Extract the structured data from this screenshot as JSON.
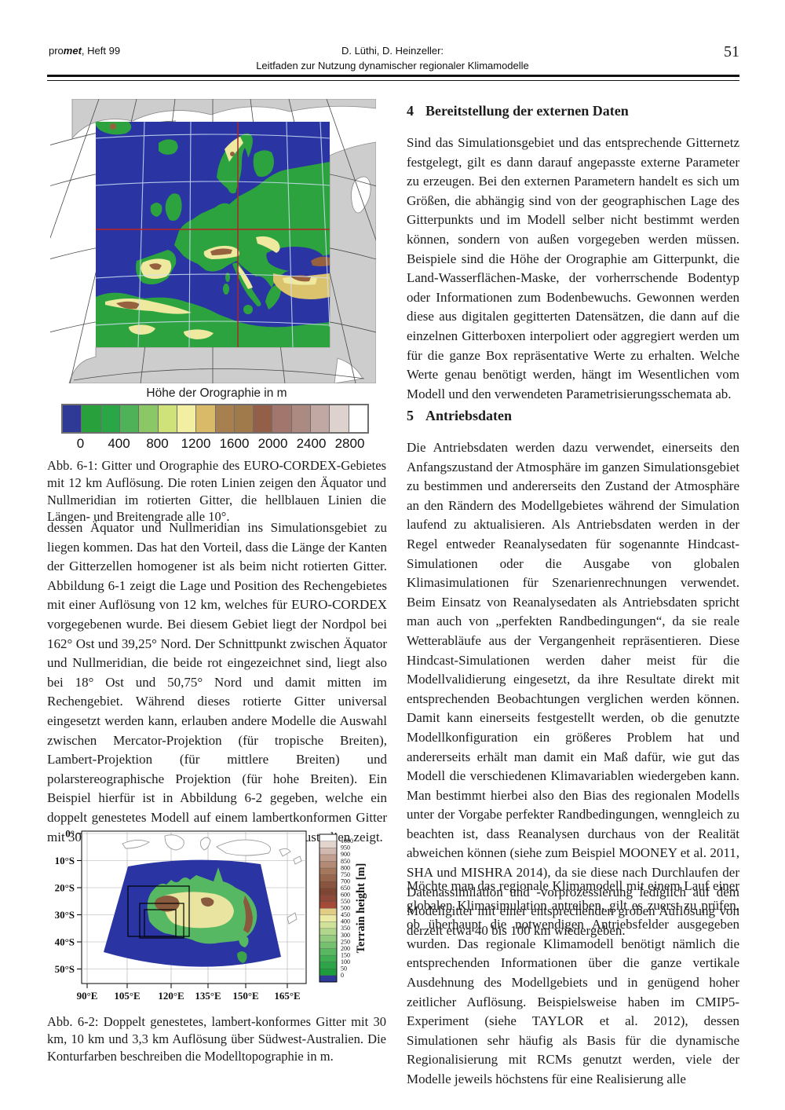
{
  "header": {
    "journal_prefix": "pro",
    "journal_bold_italic": "met",
    "journal_suffix": ", Heft 99",
    "authors_line": "D. Lüthi, D. Heinzeller:",
    "title_line": "Leitfaden zur Nutzung dynamischer regionaler Klimamodelle",
    "page_number": "51"
  },
  "left_column": {
    "figure1": {
      "colorbar_title": "Höhe der Orographie in m",
      "colorbar_colors": [
        "#2e3a96",
        "#28a03c",
        "#2aa647",
        "#4fb158",
        "#8cc765",
        "#cfe179",
        "#f2efa2",
        "#d9ba69",
        "#a8804f",
        "#a07a4b",
        "#935f49",
        "#a3766d",
        "#ab8a82",
        "#c2a8a2",
        "#ddd2ce",
        "#ffffff"
      ],
      "colorbar_ticks": [
        "0",
        "400",
        "800",
        "1200",
        "1600",
        "2000",
        "2400",
        "2800"
      ],
      "caption": "Abb. 6-1: Gitter und Orographie des EURO-CORDEX-Gebietes mit 12 km Auflösung. Die roten Linien zeigen den Äquator und Nullmeridian im rotierten Gitter, die hellblauen Linien die Längen- und Breitengrade alle 10°."
    },
    "paragraph": "dessen Äquator und Nullmeridian ins Simulationsgebiet zu liegen kommen. Das hat den Vorteil, dass die Länge der Kanten der Gitterzellen homogener ist als beim nicht rotierten Gitter. Abbildung  6-1 zeigt die Lage und Position des Rechengebietes mit einer Auflösung von 12 km, welches für EURO-CORDEX vorgegebenen wurde. Bei diesem Gebiet liegt der Nordpol bei 162° Ost und 39,25° Nord. Der Schnittpunkt zwischen Äquator und Nullmeridian, die beide rot eingezeichnet sind, liegt also bei 18° Ost und 50,75° Nord und damit mitten im Rechengebiet. Während dieses rotierte Gitter universal eingesetzt werden kann, erlauben andere Modelle die Auswahl zwischen Mercator-Projektion (für tropische Breiten), Lambert-Projektion (für mittlere Breiten) und polarstereographische Projektion (für hohe Breiten). Ein Beispiel hierfür ist in Abbildung 6-2 gegeben, welche ein doppelt genestetes Modell auf einem lambertkonformen Gitter mit 30 km, 10 km und 3,3 km Auflösung über Australien zeigt.",
    "figure2": {
      "y_axis_labels": [
        "0°",
        "10°S",
        "20°S",
        "30°S",
        "40°S",
        "50°S"
      ],
      "x_axis_labels": [
        "90°E",
        "105°E",
        "120°E",
        "135°E",
        "150°E",
        "165°E"
      ],
      "colorbar_label": "Terrain height [m]",
      "colorbar_ticks_top_down": [
        "1000",
        "950",
        "900",
        "850",
        "800",
        "750",
        "700",
        "650",
        "600",
        "550",
        "500",
        "450",
        "400",
        "350",
        "300",
        "250",
        "200",
        "150",
        "100",
        "50",
        "0"
      ],
      "colorbar_colors_bottom_up": [
        "#2e3a96",
        "#1f9c3b",
        "#2ca447",
        "#41ad52",
        "#59b761",
        "#75c16f",
        "#92cb7d",
        "#b0d78c",
        "#d0e29a",
        "#eaeaa4",
        "#e2cd86",
        "#a34a39",
        "#8f4939",
        "#7f4634",
        "#8a553f",
        "#97664c",
        "#a5775d",
        "#b28a75",
        "#c09e90",
        "#d2b9af",
        "#e3d4cd",
        "#ffffff"
      ],
      "caption": "Abb. 6-2: Doppelt genestetes, lambert-konformes Gitter mit 30 km, 10 km und 3,3 km Auflösung über Südwest-Australien. Die Konturfarben beschreiben die Modelltopographie in m."
    }
  },
  "right_column": {
    "section4": {
      "number": "4",
      "title": "Bereitstellung der externen Daten",
      "paragraph": "Sind das Simulationsgebiet und das entsprechende Gitternetz festgelegt, gilt es dann darauf angepasste externe Parameter zu erzeugen. Bei den externen Parametern handelt es sich um Größen, die abhängig sind von der geographischen Lage des Gitterpunkts und im Modell selber nicht bestimmt werden können, sondern von außen vorgegeben werden müssen. Beispiele sind die Höhe der Orographie am Gitterpunkt, die Land-Wasserflächen-Maske, der vorherrschende Bodentyp oder Informationen zum Bodenbewuchs. Gewonnen werden diese aus digitalen gegitterten Datensätzen, die dann auf die einzelnen Gitterboxen interpoliert oder aggregiert werden um für die ganze Box repräsentative Werte zu erhalten. Welche Werte genau benötigt werden, hängt im Wesentlichen vom Modell und den verwendeten Parametrisierungsschemata ab."
    },
    "section5": {
      "number": "5",
      "title": "Antriebsdaten",
      "paragraph1": "Die Antriebsdaten werden dazu verwendet, einerseits den Anfangszustand der Atmosphäre im ganzen Simulationsgebiet zu bestimmen und andererseits den Zustand der Atmosphäre an den Rändern des Modellgebietes während der Simulation laufend zu aktualisieren. Als Antriebsdaten werden in der Regel entweder Reanalysedaten für sogenannte Hindcast-Simulationen oder die Ausgabe von globalen Klimasimulationen für Szenarienrechnungen verwendet. Beim Einsatz von Reanalysedaten als Antriebsdaten spricht man auch von „perfekten Randbedingungen“, da sie reale Wetterabläufe aus der Vergangenheit repräsentieren. Diese Hindcast-Simulationen werden daher meist für die Modellvalidierung eingesetzt, da ihre Resultate direkt mit entsprechenden Beobachtungen verglichen werden können. Damit kann einerseits festgestellt werden, ob die genutzte Modellkonfiguration ein größeres Problem hat und andererseits erhält man damit ein Maß dafür, wie gut das Modell die verschiedenen Klimavariablen wiedergeben kann. Man bestimmt hierbei also den Bias des regionalen Modells unter der Vorgabe perfekter Randbedingungen, wenngleich zu beachten ist, dass Reanalysen durchaus von der Realität abweichen können (siehe zum Beispiel MOONEY et al. 2011, SHA und MISHRA 2014), da sie diese nach Durchlaufen der Datenassimilation und -vorprozessierung lediglich auf dem Modellgitter mit einer entsprechenden groben Auflösung von derzeit etwa 40 bis 100 km wiedergeben.",
      "paragraph2": "Möchte man das regionale Klimamodell mit einem Lauf einer globalen Klimasimulation antreiben, gilt es zuerst zu prüfen, ob überhaupt die notwendigen Antriebsfelder ausgegeben wurden. Das regionale Klimamodell benötigt nämlich die entsprechenden Informationen über die ganze vertikale Ausdehnung des Modellgebiets und in genügend hoher zeitlicher Auflösung. Beispielsweise haben im CMIP5-Experiment (siehe TAYLOR et al. 2012), dessen Simulationen sehr häufig als Basis für die dynamische Regionalisierung mit RCMs genutzt werden, viele der Modelle jeweils höchstens für eine Realisierung alle"
    }
  },
  "palette": {
    "ocean": "#2a35a3",
    "land_green": "#2ca33e",
    "elevation_yellow": "#efe9a0",
    "elevation_brown": "#96613f",
    "rotated_grid_red": "#bb2222",
    "graticule_light_blue": "#cfe0f5",
    "outside_land_gray": "#cdcdcd"
  }
}
